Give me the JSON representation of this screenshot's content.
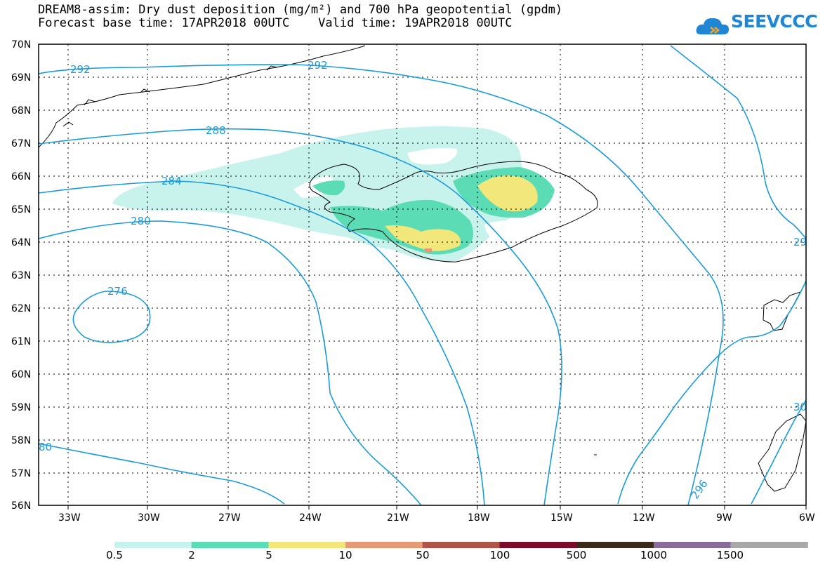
{
  "title_line1": "DREAM8-assim: Dry dust deposition (mg/m²) and 700 hPa geopotential (gpdm)",
  "title_line2": "Forecast base time: 17APR2018 00UTC    Valid time: 19APR2018 00UTC",
  "logo": {
    "text": "SEEVCCC",
    "icon": "cloud-icon"
  },
  "map": {
    "lat_labels": [
      "70N",
      "69N",
      "68N",
      "67N",
      "66N",
      "65N",
      "64N",
      "63N",
      "62N",
      "61N",
      "60N",
      "59N",
      "58N",
      "57N",
      "56N"
    ],
    "lon_labels": [
      "33W",
      "30W",
      "27W",
      "24W",
      "21W",
      "18W",
      "15W",
      "12W",
      "9W",
      "6W"
    ],
    "contour_labels": [
      "292",
      "292",
      "288",
      "284",
      "280",
      "276",
      "80",
      "29",
      "30",
      "296"
    ],
    "contour_color": "#1b9bd9",
    "coast_color": "#000000"
  },
  "legend": {
    "labels": [
      "0.5",
      "2",
      "5",
      "10",
      "50",
      "100",
      "500",
      "1000",
      "1500"
    ],
    "colors": [
      "#c8f3ec",
      "#5cdcb4",
      "#f2e77a",
      "#e49a72",
      "#b0544a",
      "#7a0c2a",
      "#3a2a1c",
      "#8a6c9a",
      "#a8a8a8"
    ]
  }
}
